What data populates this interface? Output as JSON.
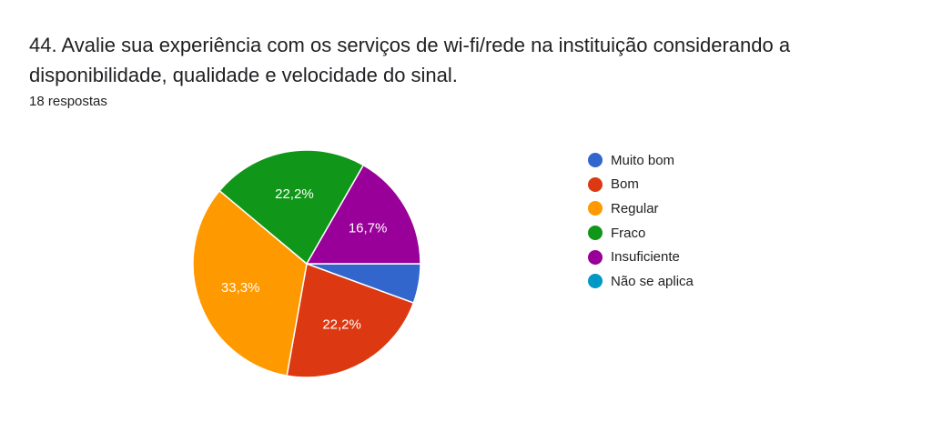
{
  "question": {
    "title": "44. Avalie sua experiência com os serviços de wi-fi/rede na instituição considerando a disponibilidade, qualidade e velocidade do sinal.",
    "responses": "18 respostas"
  },
  "chart_data": {
    "type": "pie",
    "title": "",
    "categories": [
      "Muito bom",
      "Bom",
      "Regular",
      "Fraco",
      "Insuficiente",
      "Não se aplica"
    ],
    "values": [
      5.6,
      22.2,
      33.3,
      22.2,
      16.7,
      0
    ],
    "counts": [
      1,
      4,
      6,
      4,
      3,
      0
    ],
    "data_labels": [
      "",
      "22,2%",
      "33,3%",
      "22,2%",
      "16,7%",
      ""
    ],
    "colors": [
      "#3366cc",
      "#dc3912",
      "#ff9900",
      "#109618",
      "#990099",
      "#0099c6"
    ],
    "legend": "right",
    "start": "3 o'clock, clockwise"
  }
}
